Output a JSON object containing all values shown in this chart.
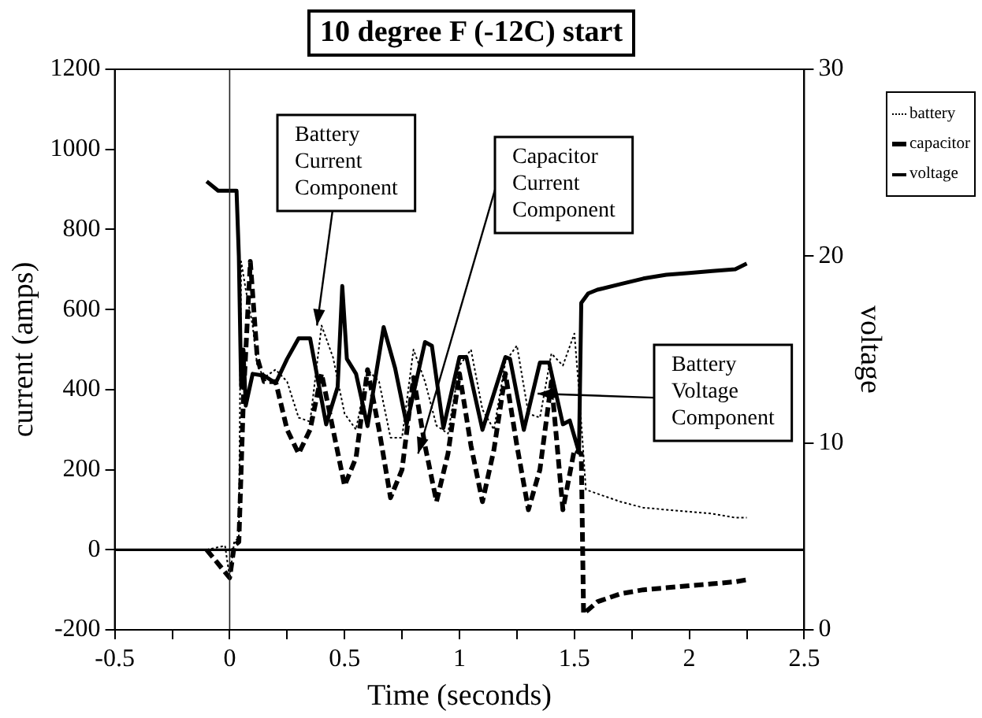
{
  "chart_data": {
    "type": "line",
    "title": "10 degree F (-12C) start",
    "xlabel": "Time (seconds)",
    "ylabel": "current (amps)",
    "y2label": "voltage",
    "xlim": [
      -0.5,
      2.5
    ],
    "xticks": [
      -0.5,
      {
        "value": -0.25,
        "label": null
      },
      0,
      {
        "value": 0.25,
        "label": null
      },
      0.5,
      {
        "value": 0.75,
        "label": null
      },
      1,
      {
        "value": 1.25,
        "label": null
      },
      1.5,
      {
        "value": 1.75,
        "label": null
      },
      2,
      {
        "value": 2.25,
        "label": null
      },
      2.5
    ],
    "ylim": [
      -200,
      1200
    ],
    "yticks": [
      -200,
      0,
      200,
      400,
      600,
      800,
      1000,
      1200
    ],
    "y2lim": [
      0,
      30
    ],
    "y2ticks": [
      0,
      10,
      20,
      30
    ],
    "grid": false,
    "legend": "right",
    "marker": "none",
    "ref_lines": [
      {
        "axis": "x",
        "value": 0,
        "label": null
      },
      {
        "axis": "y",
        "value": 0,
        "label": null
      }
    ],
    "annotations": [
      {
        "text": "Battery Current Component",
        "x": 0.38,
        "y": 560
      },
      {
        "text": "Capacitor Current Component",
        "x": 0.82,
        "y": 240
      },
      {
        "text": "Battery Voltage Component",
        "x": 1.34,
        "y": 390
      }
    ],
    "series": [
      {
        "name": "battery",
        "color": "#000000",
        "line_style": "dotted",
        "x": [
          -0.1,
          -0.02,
          0,
          0.02,
          0.04,
          0.05,
          0.07,
          0.1,
          0.12,
          0.15,
          0.2,
          0.25,
          0.3,
          0.35,
          0.4,
          0.45,
          0.5,
          0.55,
          0.6,
          0.65,
          0.7,
          0.75,
          0.8,
          0.85,
          0.9,
          0.95,
          1.0,
          1.05,
          1.1,
          1.15,
          1.2,
          1.25,
          1.3,
          1.35,
          1.4,
          1.45,
          1.5,
          1.52,
          1.55,
          1.6,
          1.7,
          1.8,
          1.9,
          2.0,
          2.1,
          2.2,
          2.25
        ],
        "values": [
          0,
          10,
          -70,
          20,
          30,
          720,
          650,
          560,
          460,
          430,
          450,
          420,
          330,
          320,
          560,
          480,
          340,
          300,
          450,
          420,
          280,
          280,
          500,
          420,
          310,
          290,
          460,
          500,
          350,
          300,
          470,
          510,
          340,
          330,
          490,
          460,
          540,
          400,
          150,
          140,
          120,
          105,
          100,
          95,
          90,
          80,
          80
        ]
      },
      {
        "name": "capacitor",
        "color": "#000000",
        "line_style": "dashed",
        "x": [
          -0.1,
          0,
          0.02,
          0.04,
          0.06,
          0.09,
          0.12,
          0.15,
          0.2,
          0.25,
          0.3,
          0.35,
          0.4,
          0.45,
          0.5,
          0.55,
          0.6,
          0.65,
          0.7,
          0.75,
          0.8,
          0.85,
          0.9,
          0.95,
          1.0,
          1.05,
          1.1,
          1.15,
          1.2,
          1.25,
          1.3,
          1.35,
          1.4,
          1.45,
          1.5,
          1.53,
          1.54,
          1.6,
          1.7,
          1.8,
          1.9,
          2.0,
          2.1,
          2.2,
          2.25
        ],
        "values": [
          0,
          -70,
          10,
          20,
          380,
          720,
          480,
          420,
          420,
          300,
          240,
          300,
          440,
          300,
          160,
          230,
          450,
          300,
          130,
          200,
          430,
          260,
          120,
          240,
          440,
          260,
          120,
          250,
          440,
          260,
          100,
          200,
          420,
          100,
          250,
          240,
          -160,
          -130,
          -110,
          -100,
          -95,
          -90,
          -85,
          -80,
          -75
        ]
      },
      {
        "name": "voltage",
        "color": "#000000",
        "line_style": "solid",
        "axis": "y2",
        "x": [
          -0.1,
          -0.05,
          0,
          0.03,
          0.04,
          0.05,
          0.06,
          0.07,
          0.1,
          0.15,
          0.2,
          0.25,
          0.3,
          0.35,
          0.42,
          0.47,
          0.49,
          0.51,
          0.55,
          0.6,
          0.67,
          0.72,
          0.77,
          0.85,
          0.88,
          0.93,
          1.0,
          1.03,
          1.1,
          1.2,
          1.22,
          1.28,
          1.35,
          1.39,
          1.45,
          1.48,
          1.52,
          1.53,
          1.56,
          1.6,
          1.7,
          1.8,
          1.9,
          2.0,
          2.1,
          2.2,
          2.25
        ],
        "values": [
          24,
          23.5,
          23.5,
          23.5,
          20,
          13,
          15,
          12,
          13.7,
          13.6,
          13.2,
          14.5,
          15.6,
          15.6,
          11,
          13,
          18.4,
          14.5,
          13.7,
          10.9,
          16.2,
          14,
          11,
          15.4,
          15.2,
          10.8,
          14.6,
          14.6,
          10.7,
          14.6,
          14.5,
          10.7,
          14.3,
          14.3,
          11,
          11.2,
          9.5,
          17.5,
          18,
          18.2,
          18.5,
          18.8,
          19,
          19.1,
          19.2,
          19.3,
          19.6
        ]
      }
    ]
  }
}
